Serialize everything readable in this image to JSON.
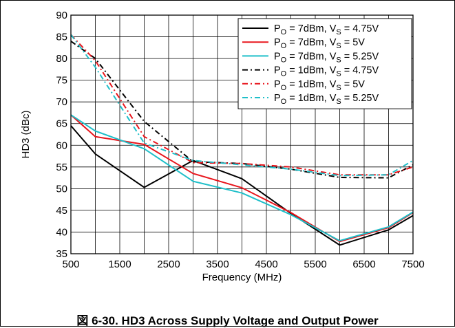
{
  "caption": "図 6-30. HD3 Across Supply Voltage and Output Power",
  "chart_data": {
    "type": "line",
    "xlabel": "Frequency (MHz)",
    "ylabel": "HD3 (dBc)",
    "xlim": [
      500,
      7500
    ],
    "ylim": [
      35,
      90
    ],
    "xticks": [
      500,
      1500,
      2500,
      3500,
      4500,
      5500,
      6500,
      7500
    ],
    "yticks": [
      35,
      40,
      45,
      50,
      55,
      60,
      65,
      70,
      75,
      80,
      85,
      90
    ],
    "grid": true,
    "legend_position": "top-right",
    "series": [
      {
        "name_main": "P",
        "name_sub": "O",
        "name_rest": " = 7dBm, V",
        "name_sub2": "S",
        "name_end": " = 4.75V",
        "color": "#000000",
        "dash": "solid",
        "x": [
          500,
          1000,
          2000,
          3000,
          4000,
          5000,
          6000,
          7000,
          7500
        ],
        "y": [
          64.5,
          58,
          50.3,
          56.5,
          52.3,
          44.3,
          37,
          40.5,
          43.8
        ]
      },
      {
        "name_main": "P",
        "name_sub": "O",
        "name_rest": " = 7dBm, V",
        "name_sub2": "S",
        "name_end": " = 5V",
        "color": "#e8141b",
        "dash": "solid",
        "x": [
          500,
          1000,
          2000,
          3000,
          4000,
          5000,
          6000,
          7000,
          7500
        ],
        "y": [
          67,
          62,
          60.2,
          53.5,
          50.2,
          44.5,
          37.8,
          41,
          44.5
        ]
      },
      {
        "name_main": "P",
        "name_sub": "O",
        "name_rest": " = 7dBm, V",
        "name_sub2": "S",
        "name_end": " = 5.25V",
        "color": "#1fbfc9",
        "dash": "solid",
        "x": [
          500,
          1000,
          2000,
          3000,
          4000,
          5000,
          6000,
          7000,
          7500
        ],
        "y": [
          67,
          63.3,
          59.2,
          51.7,
          49,
          44,
          38,
          41.2,
          44.6
        ]
      },
      {
        "name_main": "P",
        "name_sub": "O",
        "name_rest": " = 1dBm, V",
        "name_sub2": "S",
        "name_end": " = 4.75V",
        "color": "#000000",
        "dash": "dashdot",
        "x": [
          500,
          1000,
          2000,
          3000,
          4000,
          5000,
          6000,
          7000,
          7500
        ],
        "y": [
          84,
          80,
          65.5,
          56.2,
          55.8,
          54.5,
          52.6,
          52.5,
          55.5
        ]
      },
      {
        "name_main": "P",
        "name_sub": "O",
        "name_rest": " = 1dBm, V",
        "name_sub2": "S",
        "name_end": " = 5V",
        "color": "#e8141b",
        "dash": "dashdot",
        "x": [
          500,
          1000,
          2000,
          3000,
          4000,
          5000,
          6000,
          7000,
          7500
        ],
        "y": [
          85.5,
          79.5,
          62,
          56,
          55.8,
          55,
          53.2,
          53.2,
          55
        ]
      },
      {
        "name_main": "P",
        "name_sub": "O",
        "name_rest": " = 1dBm, V",
        "name_sub2": "S",
        "name_end": " = 5.25V",
        "color": "#1fbfc9",
        "dash": "dashdot",
        "x": [
          500,
          1000,
          2000,
          3000,
          4000,
          5000,
          6000,
          7000,
          7500
        ],
        "y": [
          85.5,
          78,
          60.5,
          56.5,
          55.5,
          54.5,
          53,
          53.2,
          56.5
        ]
      }
    ]
  }
}
